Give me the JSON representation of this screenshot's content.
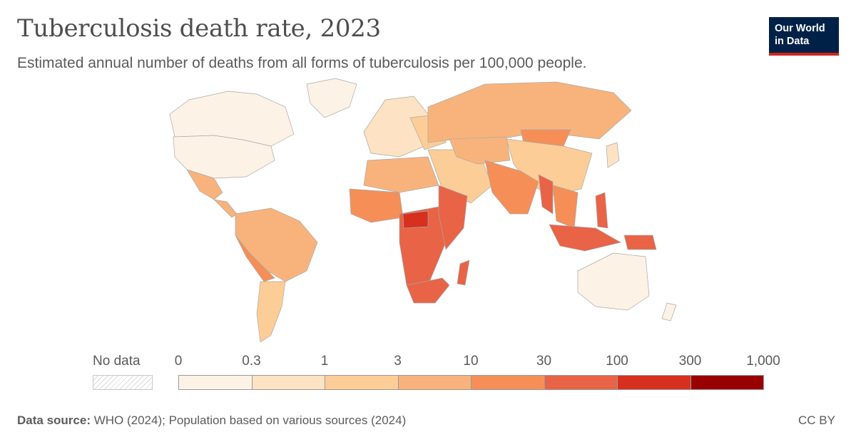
{
  "header": {
    "title": "Tuberculosis death rate, 2023",
    "subtitle": "Estimated annual number of deaths from all forms of tuberculosis per 100,000 people."
  },
  "logo": {
    "line1": "Our World",
    "line2": "in Data"
  },
  "legend": {
    "no_data_label": "No data",
    "ticks": [
      "0",
      "0.3",
      "1",
      "3",
      "10",
      "30",
      "100",
      "300",
      "1,000"
    ],
    "colors": [
      "#fdf2e6",
      "#fde2c3",
      "#fccd96",
      "#f8b37c",
      "#f58f57",
      "#e96346",
      "#d7301f",
      "#990000"
    ]
  },
  "footer": {
    "source_label": "Data source:",
    "source_text": "WHO (2024); Population based on various sources (2024)",
    "license": "CC BY"
  },
  "map_data": {
    "regions": [
      {
        "name": "Canada",
        "bin": 0
      },
      {
        "name": "United States",
        "bin": 0
      },
      {
        "name": "Greenland",
        "bin": 0
      },
      {
        "name": "Mexico",
        "bin": 3
      },
      {
        "name": "Central America",
        "bin": 3
      },
      {
        "name": "South America",
        "bin": 3
      },
      {
        "name": "Peru / Bolivia",
        "bin": 4
      },
      {
        "name": "Southern Cone",
        "bin": 2
      },
      {
        "name": "Europe",
        "bin": 1
      },
      {
        "name": "Eastern Europe",
        "bin": 2
      },
      {
        "name": "Russia",
        "bin": 3
      },
      {
        "name": "North Africa",
        "bin": 3
      },
      {
        "name": "Middle East",
        "bin": 2
      },
      {
        "name": "Central Asia",
        "bin": 3
      },
      {
        "name": "Mongolia",
        "bin": 4
      },
      {
        "name": "China",
        "bin": 2
      },
      {
        "name": "Japan",
        "bin": 1
      },
      {
        "name": "South Asia",
        "bin": 4
      },
      {
        "name": "Myanmar",
        "bin": 5
      },
      {
        "name": "West Africa",
        "bin": 4
      },
      {
        "name": "Central Africa",
        "bin": 5
      },
      {
        "name": "Central African Republic",
        "bin": 6
      },
      {
        "name": "East Africa",
        "bin": 5
      },
      {
        "name": "Southern Africa",
        "bin": 5
      },
      {
        "name": "Madagascar",
        "bin": 5
      },
      {
        "name": "Southeast Asia",
        "bin": 4
      },
      {
        "name": "Philippines",
        "bin": 5
      },
      {
        "name": "Indonesia",
        "bin": 5
      },
      {
        "name": "Papua New Guinea",
        "bin": 5
      },
      {
        "name": "Australia",
        "bin": 0
      },
      {
        "name": "New Zealand",
        "bin": 0
      }
    ]
  }
}
